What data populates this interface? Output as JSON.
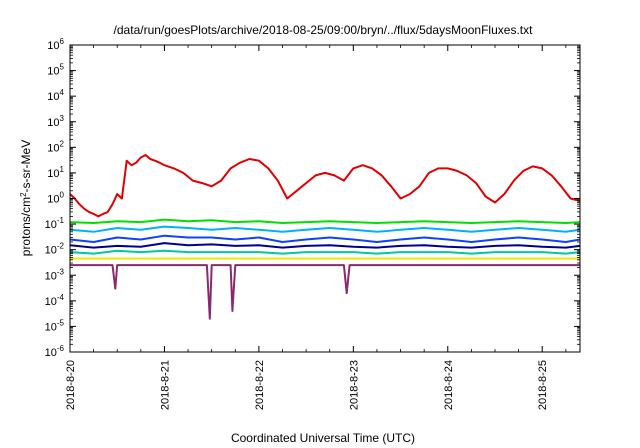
{
  "chart_data": {
    "type": "line",
    "title": "/data/run/goesPlots/archive/2018-08-25/09:00/bryn/../flux/5daysMoonFluxes.txt",
    "xlabel": "Coordinated Universal Time (UTC)",
    "ylabel": "protons/cm²-s-sr-MeV",
    "ylabel_parts": {
      "pre": "protons/cm",
      "sup": "2",
      "post": "-s-sr-MeV"
    },
    "x_unit": "days since 2018-8-20 00:00 UTC",
    "xlim": [
      0,
      5.4
    ],
    "y_scale": "log",
    "ylim": [
      1e-06,
      1000000.0
    ],
    "x_ticks": [
      {
        "value": 0,
        "label": "2018-8-20"
      },
      {
        "value": 1,
        "label": "2018-8-21"
      },
      {
        "value": 2,
        "label": "2018-8-22"
      },
      {
        "value": 3,
        "label": "2018-8-23"
      },
      {
        "value": 4,
        "label": "2018-8-24"
      },
      {
        "value": 5,
        "label": "2018-8-25"
      }
    ],
    "y_ticks": [
      {
        "value": 1e-06,
        "base": "10",
        "exp": "-6"
      },
      {
        "value": 1e-05,
        "base": "10",
        "exp": "-5"
      },
      {
        "value": 0.0001,
        "base": "10",
        "exp": "-4"
      },
      {
        "value": 0.001,
        "base": "10",
        "exp": "-3"
      },
      {
        "value": 0.01,
        "base": "10",
        "exp": "-2"
      },
      {
        "value": 0.1,
        "base": "10",
        "exp": "-1"
      },
      {
        "value": 1.0,
        "base": "10",
        "exp": "0"
      },
      {
        "value": 10.0,
        "base": "10",
        "exp": "1"
      },
      {
        "value": 100.0,
        "base": "10",
        "exp": "2"
      },
      {
        "value": 1000.0,
        "base": "10",
        "exp": "3"
      },
      {
        "value": 10000.0,
        "base": "10",
        "exp": "4"
      },
      {
        "value": 100000.0,
        "base": "10",
        "exp": "5"
      },
      {
        "value": 1000000.0,
        "base": "10",
        "exp": "6"
      }
    ],
    "grid": false,
    "legend": "none",
    "series": [
      {
        "color": "#e00000",
        "x": [
          0,
          0.05,
          0.1,
          0.15,
          0.2,
          0.25,
          0.3,
          0.35,
          0.4,
          0.45,
          0.5,
          0.55,
          0.6,
          0.65,
          0.7,
          0.75,
          0.8,
          0.85,
          0.9,
          0.95,
          1,
          1.1,
          1.2,
          1.3,
          1.4,
          1.5,
          1.6,
          1.7,
          1.8,
          1.9,
          2,
          2.1,
          2.2,
          2.3,
          2.4,
          2.5,
          2.6,
          2.7,
          2.8,
          2.9,
          3,
          3.1,
          3.2,
          3.3,
          3.4,
          3.5,
          3.6,
          3.7,
          3.8,
          3.9,
          4,
          4.1,
          4.2,
          4.3,
          4.4,
          4.5,
          4.6,
          4.7,
          4.8,
          4.9,
          5,
          5.1,
          5.2,
          5.3,
          5.4
        ],
        "y": [
          1.5,
          1,
          0.6,
          0.4,
          0.3,
          0.25,
          0.2,
          0.25,
          0.3,
          0.6,
          1.5,
          1,
          30,
          20,
          25,
          40,
          50,
          35,
          30,
          25,
          20,
          15,
          10,
          5,
          4,
          3,
          5,
          15,
          25,
          35,
          30,
          15,
          5,
          1,
          2,
          4,
          8,
          10,
          8,
          5,
          15,
          20,
          15,
          8,
          3,
          1,
          1.5,
          3,
          10,
          15,
          15,
          12,
          8,
          4,
          1.2,
          0.7,
          1.5,
          5,
          12,
          18,
          15,
          8,
          3,
          1,
          0.8
        ]
      },
      {
        "color": "#00e000",
        "x": [
          0,
          0.25,
          0.5,
          0.75,
          1,
          1.25,
          1.5,
          1.75,
          2,
          2.25,
          2.5,
          2.75,
          3,
          3.25,
          3.5,
          3.75,
          4,
          4.25,
          4.5,
          4.75,
          5,
          5.25,
          5.4
        ],
        "y": [
          0.12,
          0.11,
          0.13,
          0.12,
          0.15,
          0.13,
          0.14,
          0.12,
          0.13,
          0.11,
          0.12,
          0.13,
          0.12,
          0.11,
          0.12,
          0.13,
          0.12,
          0.11,
          0.12,
          0.13,
          0.12,
          0.11,
          0.12
        ]
      },
      {
        "color": "#00b0ff",
        "x": [
          0,
          0.25,
          0.5,
          0.75,
          1,
          1.25,
          1.5,
          1.75,
          2,
          2.25,
          2.5,
          2.75,
          3,
          3.25,
          3.5,
          3.75,
          4,
          4.25,
          4.5,
          4.75,
          5,
          5.25,
          5.4
        ],
        "y": [
          0.06,
          0.05,
          0.07,
          0.06,
          0.08,
          0.07,
          0.06,
          0.07,
          0.06,
          0.05,
          0.06,
          0.07,
          0.06,
          0.05,
          0.06,
          0.07,
          0.06,
          0.05,
          0.06,
          0.07,
          0.06,
          0.05,
          0.06
        ]
      },
      {
        "color": "#1040ff",
        "x": [
          0,
          0.25,
          0.5,
          0.75,
          1,
          1.25,
          1.5,
          1.75,
          2,
          2.25,
          2.5,
          2.75,
          3,
          3.25,
          3.5,
          3.75,
          4,
          4.25,
          4.5,
          4.75,
          5,
          5.25,
          5.4
        ],
        "y": [
          0.025,
          0.02,
          0.03,
          0.025,
          0.035,
          0.03,
          0.03,
          0.025,
          0.03,
          0.02,
          0.025,
          0.03,
          0.025,
          0.02,
          0.025,
          0.03,
          0.025,
          0.02,
          0.025,
          0.03,
          0.025,
          0.02,
          0.025
        ]
      },
      {
        "color": "#000090",
        "x": [
          0,
          0.25,
          0.5,
          0.75,
          1,
          1.25,
          1.5,
          1.75,
          2,
          2.25,
          2.5,
          2.75,
          3,
          3.25,
          3.5,
          3.75,
          4,
          4.25,
          4.5,
          4.75,
          5,
          5.25,
          5.4
        ],
        "y": [
          0.015,
          0.012,
          0.014,
          0.013,
          0.018,
          0.015,
          0.016,
          0.014,
          0.015,
          0.012,
          0.014,
          0.015,
          0.013,
          0.012,
          0.014,
          0.015,
          0.013,
          0.012,
          0.014,
          0.015,
          0.013,
          0.012,
          0.014
        ]
      },
      {
        "color": "#00c8a0",
        "x": [
          0,
          0.25,
          0.5,
          0.75,
          1,
          1.25,
          1.5,
          1.75,
          2,
          2.25,
          2.5,
          2.75,
          3,
          3.25,
          3.5,
          3.75,
          4,
          4.25,
          4.5,
          4.75,
          5,
          5.25,
          5.4
        ],
        "y": [
          0.008,
          0.007,
          0.009,
          0.008,
          0.009,
          0.008,
          0.008,
          0.008,
          0.008,
          0.007,
          0.008,
          0.008,
          0.008,
          0.007,
          0.008,
          0.008,
          0.008,
          0.007,
          0.008,
          0.008,
          0.008,
          0.007,
          0.008
        ]
      },
      {
        "color": "#e8e800",
        "x": [
          0,
          0.25,
          0.5,
          0.75,
          1,
          1.25,
          1.5,
          1.75,
          2,
          2.25,
          2.5,
          2.75,
          3,
          3.25,
          3.5,
          3.75,
          4,
          4.25,
          4.5,
          4.75,
          5,
          5.25,
          5.4
        ],
        "y": [
          0.0045,
          0.0045,
          0.0045,
          0.0045,
          0.0045,
          0.0045,
          0.0045,
          0.0045,
          0.0045,
          0.0045,
          0.0045,
          0.0045,
          0.0045,
          0.0045,
          0.0045,
          0.0045,
          0.0045,
          0.0045,
          0.0045,
          0.0045,
          0.0045,
          0.0045,
          0.0045
        ]
      },
      {
        "color": "#8a2a6e",
        "x": [
          0,
          0.2,
          0.4,
          0.45,
          0.48,
          0.5,
          0.55,
          0.8,
          1,
          1.2,
          1.45,
          1.48,
          1.5,
          1.55,
          1.7,
          1.72,
          1.75,
          1.8,
          2,
          2.2,
          2.4,
          2.6,
          2.8,
          2.9,
          2.93,
          2.96,
          3.2,
          3.4,
          3.6,
          3.8,
          4,
          4.2,
          4.4,
          4.6,
          4.8,
          5,
          5.2,
          5.4
        ],
        "y": [
          0.0025,
          0.0025,
          0.0025,
          0.0025,
          0.0003,
          0.0025,
          0.0025,
          0.0025,
          0.0025,
          0.0025,
          0.0025,
          2e-05,
          0.0025,
          0.0025,
          0.0025,
          4e-05,
          0.0025,
          0.0025,
          0.0025,
          0.0025,
          0.0025,
          0.0025,
          0.0025,
          0.0025,
          0.0002,
          0.0025,
          0.0025,
          0.0025,
          0.0025,
          0.0025,
          0.0025,
          0.0025,
          0.0025,
          0.0025,
          0.0025,
          0.0025,
          0.0025,
          0.0025
        ]
      }
    ]
  }
}
